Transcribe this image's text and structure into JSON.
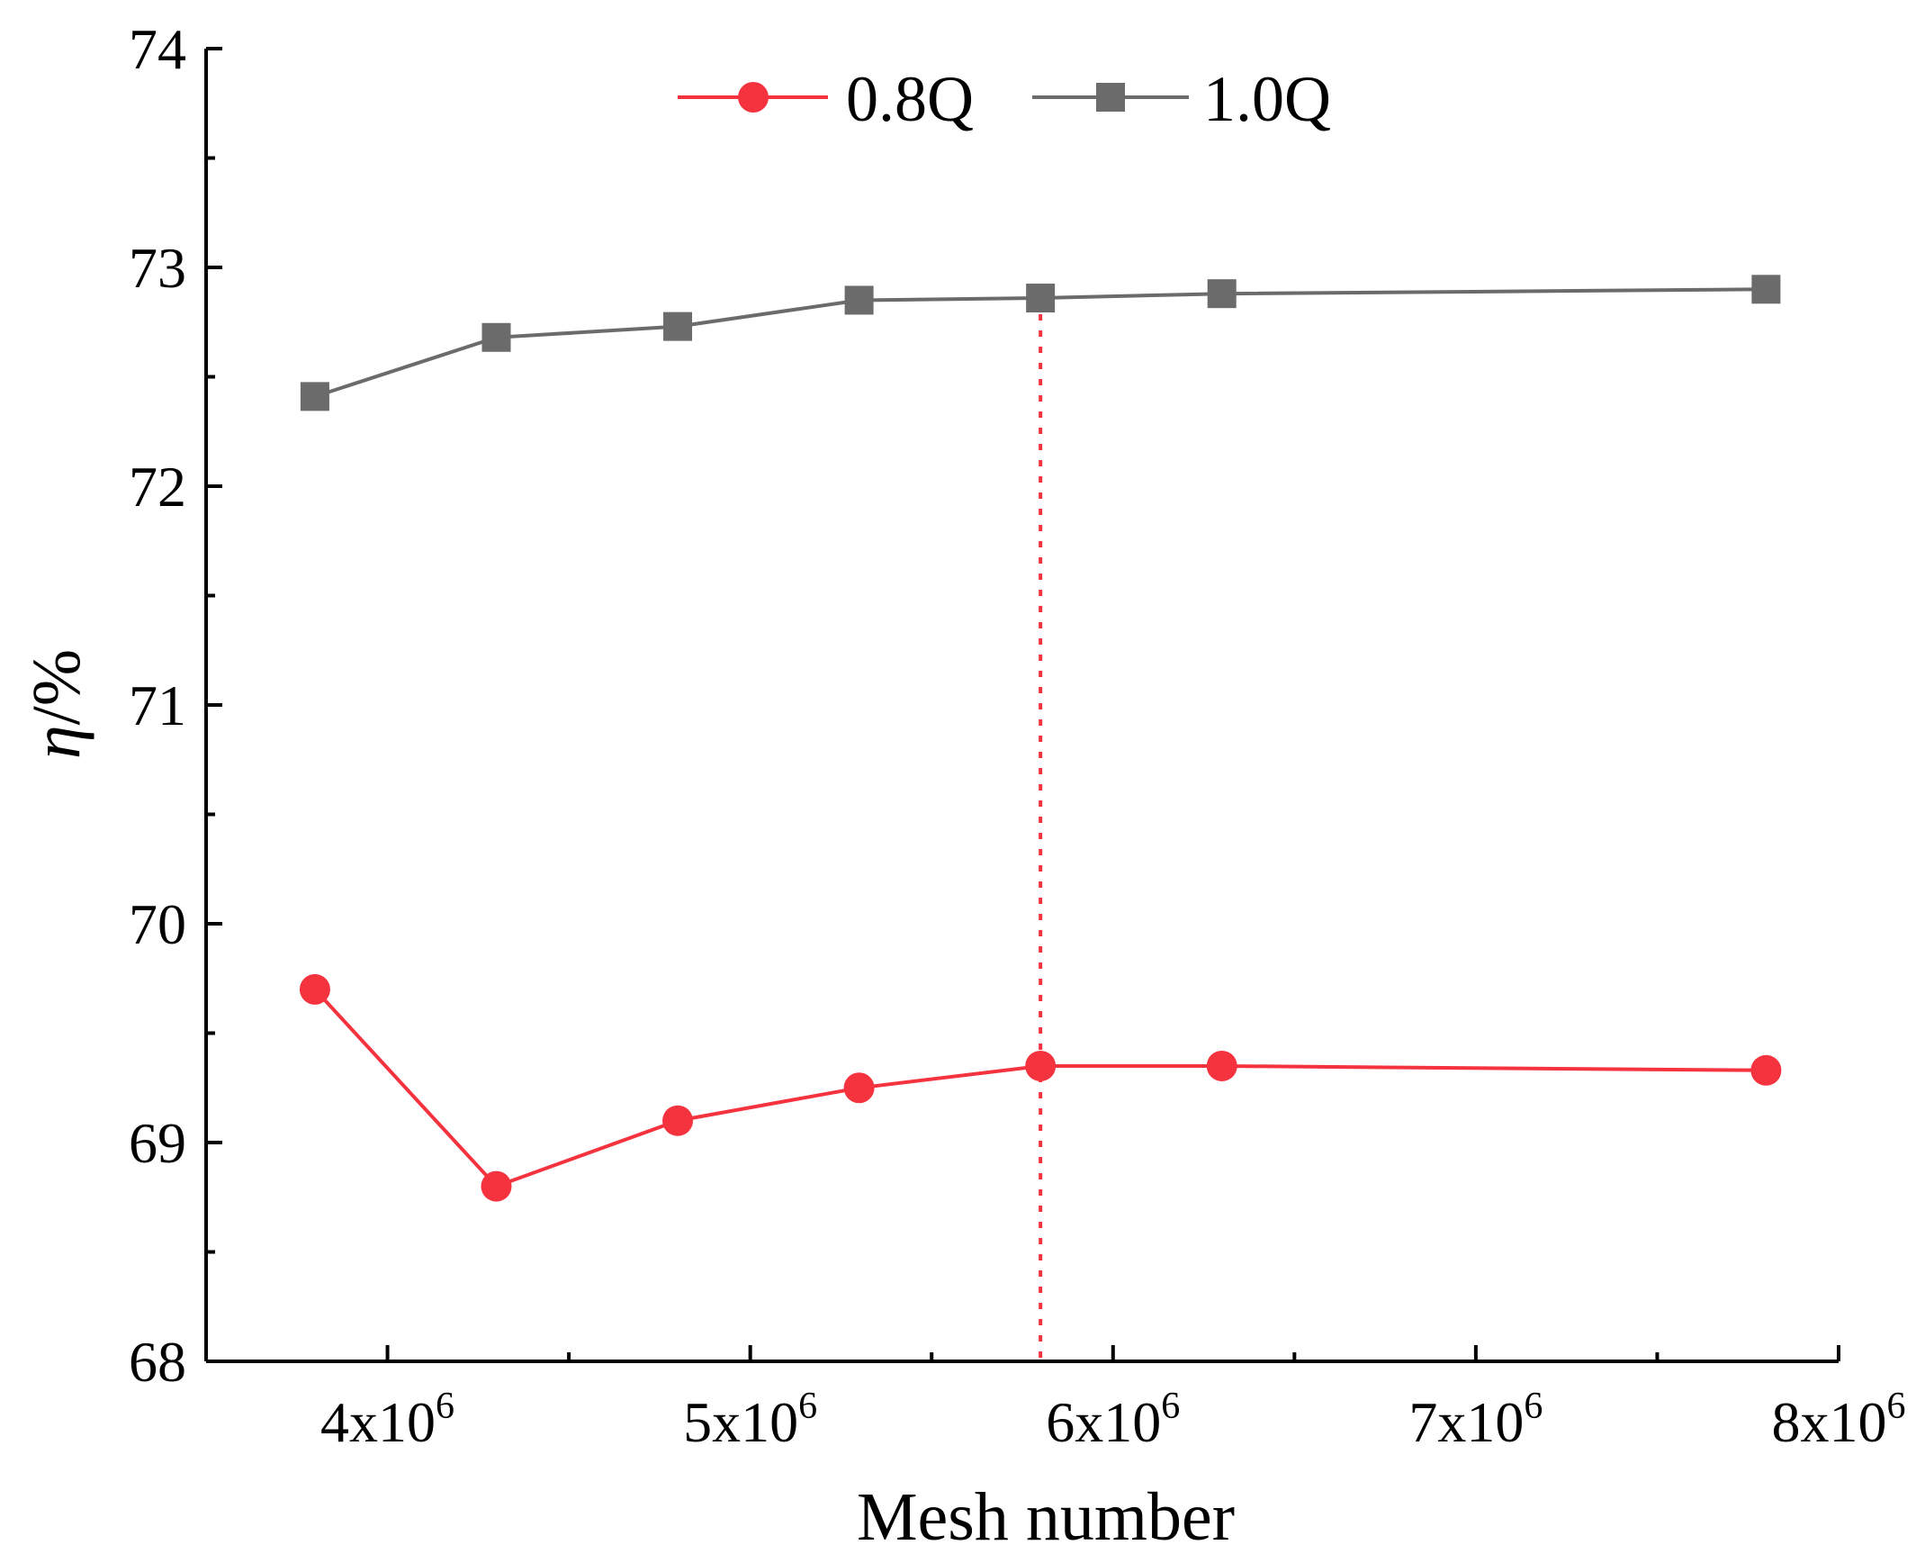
{
  "chart_data": {
    "type": "line",
    "title": "",
    "xlabel": "Mesh number",
    "ylabel_symbol": "η",
    "ylabel_unit": "/%",
    "xlim": [
      3500000,
      8000000
    ],
    "ylim": [
      68,
      74
    ],
    "x_ticks": [
      {
        "value": 4000000,
        "base": "4x10",
        "exp": "6"
      },
      {
        "value": 5000000,
        "base": "5x10",
        "exp": "6"
      },
      {
        "value": 6000000,
        "base": "6x10",
        "exp": "6"
      },
      {
        "value": 7000000,
        "base": "7x10",
        "exp": "6"
      },
      {
        "value": 8000000,
        "base": "8x10",
        "exp": "6"
      }
    ],
    "y_ticks": [
      {
        "value": 68,
        "label": "68"
      },
      {
        "value": 69,
        "label": "69"
      },
      {
        "value": 70,
        "label": "70"
      },
      {
        "value": 71,
        "label": "71"
      },
      {
        "value": 72,
        "label": "72"
      },
      {
        "value": 73,
        "label": "73"
      },
      {
        "value": 74,
        "label": "74"
      }
    ],
    "x": [
      3800000,
      4300000,
      4800000,
      5300000,
      5800000,
      6300000,
      7800000
    ],
    "series": [
      {
        "name": "0.8Q",
        "color": "#F5333F",
        "marker": "circle",
        "values": [
          69.7,
          68.8,
          69.1,
          69.25,
          69.35,
          69.35,
          69.33
        ]
      },
      {
        "name": "1.0Q",
        "color": "#6B6B6B",
        "marker": "square",
        "values": [
          72.41,
          72.68,
          72.73,
          72.85,
          72.86,
          72.88,
          72.9
        ]
      }
    ],
    "reference_line": {
      "x": 5800000,
      "color": "#F5333F",
      "style": "dotted",
      "y_top": 72.86
    },
    "legend_position": "top-center",
    "grid": false
  }
}
